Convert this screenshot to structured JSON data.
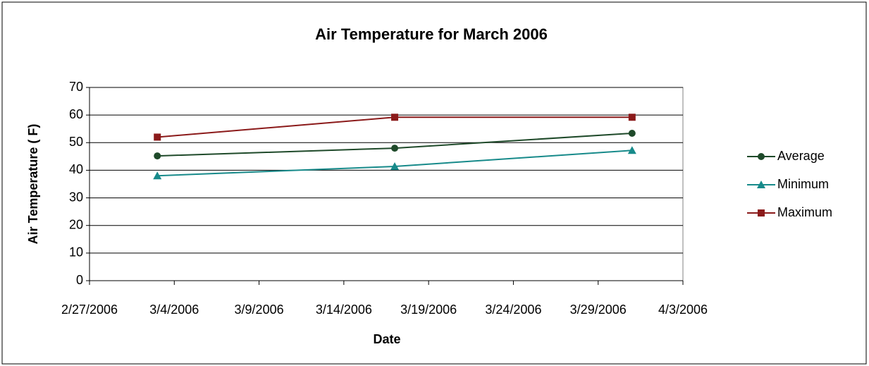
{
  "chart_data": {
    "type": "line",
    "title": "Air Temperature for March 2006",
    "x_label": "Date",
    "y_label": "Air Temperature ( F)",
    "x": [
      "3/3/2006",
      "3/17/2006",
      "3/31/2006"
    ],
    "series": [
      {
        "name": "Average",
        "color": "#1f4a2a",
        "marker": "circle",
        "values": [
          45.2,
          48,
          53.4
        ]
      },
      {
        "name": "Minimum",
        "color": "#178a8a",
        "marker": "triangle",
        "values": [
          38,
          41.4,
          47.2
        ]
      },
      {
        "name": "Maximum",
        "color": "#8b1a1a",
        "marker": "square",
        "values": [
          52,
          59.2,
          59.2
        ]
      }
    ],
    "xlim": [
      "2/27/2006",
      "4/3/2006"
    ],
    "xticks": [
      "2/27/2006",
      "3/4/2006",
      "3/9/2006",
      "3/14/2006",
      "3/19/2006",
      "3/24/2006",
      "3/29/2006",
      "4/3/2006"
    ],
    "ylim": [
      0,
      70
    ],
    "yticks": [
      0,
      10,
      20,
      30,
      40,
      50,
      60,
      70
    ],
    "grid": true,
    "legend": "right"
  }
}
